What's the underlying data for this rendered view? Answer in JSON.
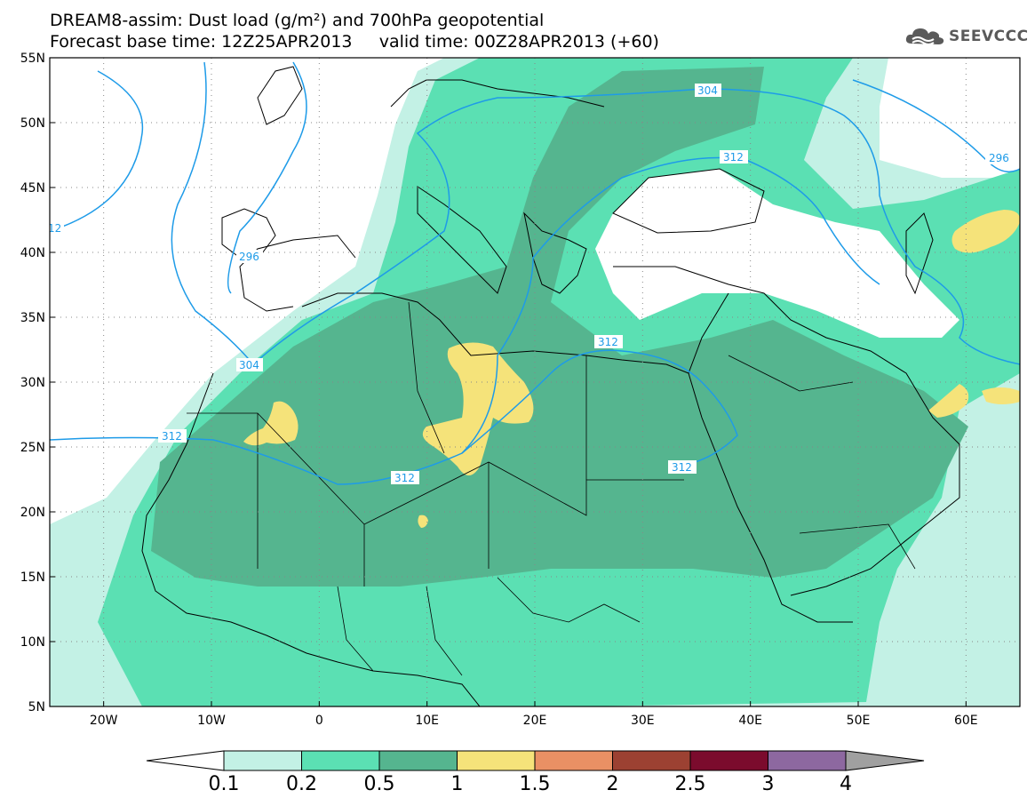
{
  "title": {
    "line1": "DREAM8-assim: Dust load (g/m²) and 700hPa geopotential",
    "line2": "Forecast base time: 12Z25APR2013     valid time: 00Z28APR2013 (+60)"
  },
  "logo": {
    "text": "SEEVCCC",
    "icon": "cloud-icon"
  },
  "map": {
    "lon_range": [
      -25,
      65
    ],
    "lat_range": [
      5,
      55
    ],
    "lat_ticks": [
      "55N",
      "50N",
      "45N",
      "40N",
      "35N",
      "30N",
      "25N",
      "20N",
      "15N",
      "10N",
      "5N"
    ],
    "lon_ticks": [
      "20W",
      "10W",
      "0",
      "10E",
      "20E",
      "30E",
      "40E",
      "50E",
      "60E"
    ],
    "grid": "dotted"
  },
  "contours": {
    "color": "#1e9be8",
    "labels": [
      "12",
      "296",
      "304",
      "304",
      "312",
      "312",
      "296",
      "312",
      "312",
      "312"
    ]
  },
  "colorbar": {
    "levels": [
      "0.1",
      "0.2",
      "0.5",
      "1",
      "1.5",
      "2",
      "2.5",
      "3",
      "4"
    ],
    "colors": [
      "#c3f1e5",
      "#5be0b3",
      "#55b58f",
      "#f5e37a",
      "#e99064",
      "#9c4132",
      "#7b0b2d",
      "#8d68a0",
      "#a0a0a0"
    ],
    "under_color": "#ffffff"
  }
}
